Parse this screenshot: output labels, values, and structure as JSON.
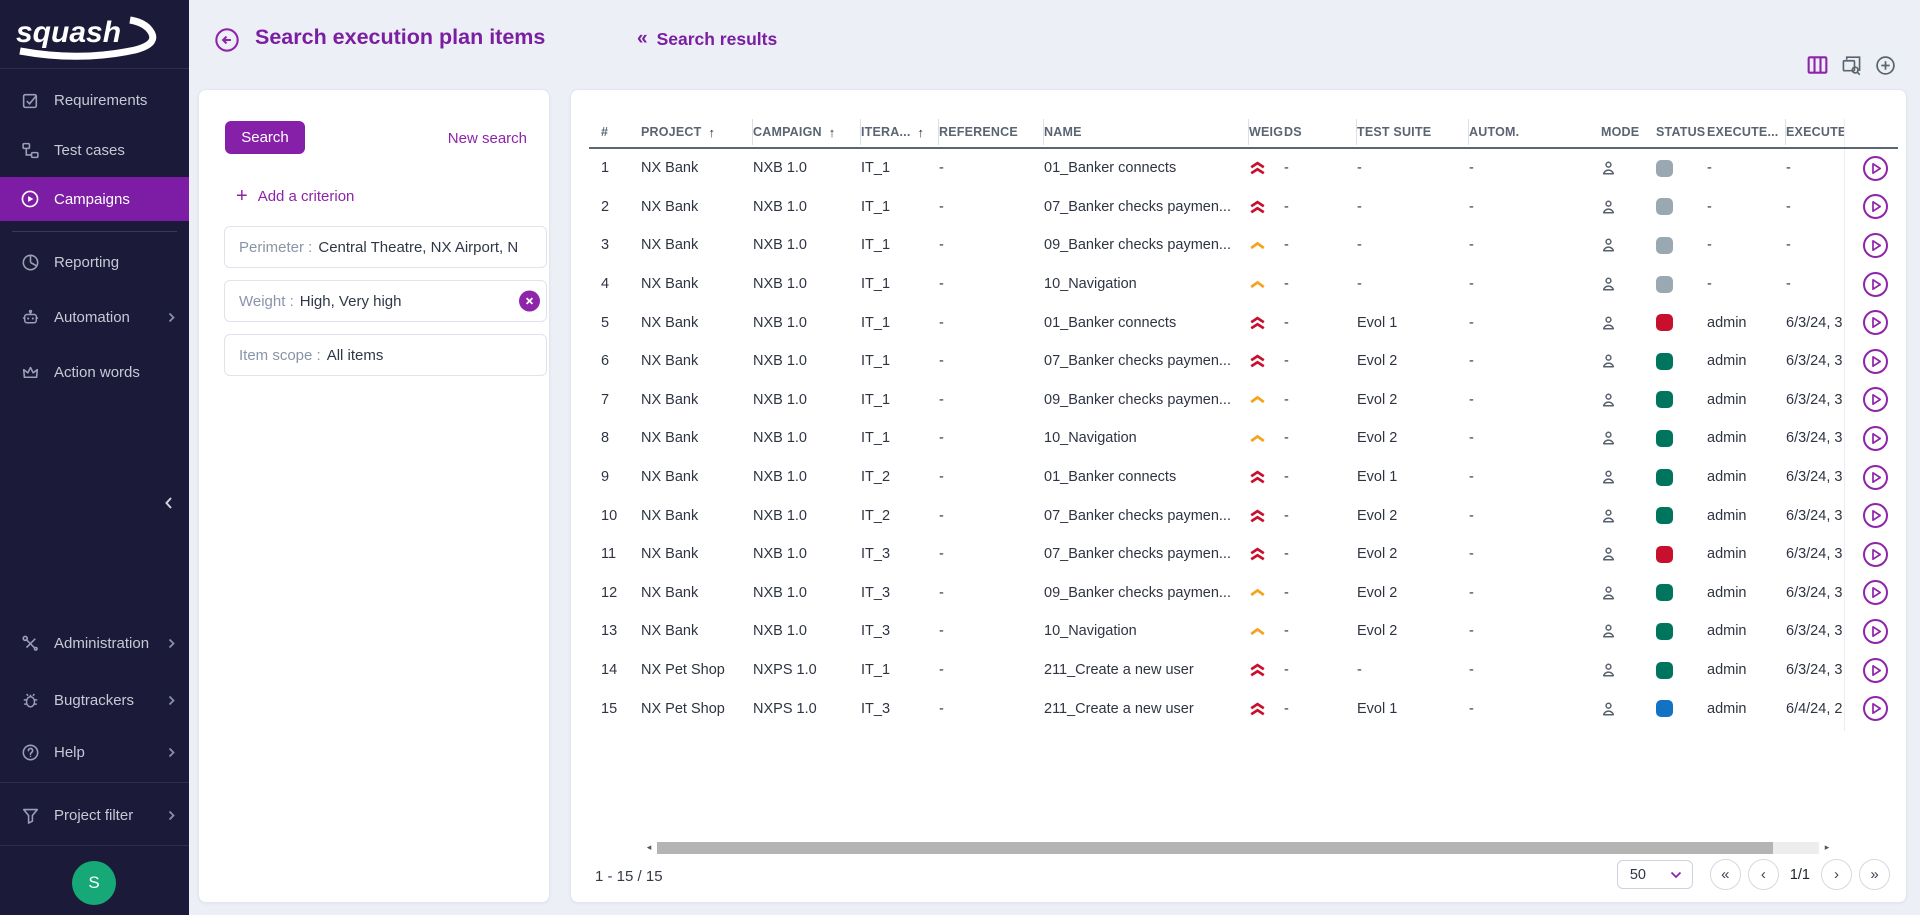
{
  "sidebar": {
    "logo": "squash",
    "main_items": [
      {
        "label": "Requirements",
        "icon": "requirements-icon",
        "active": false,
        "expandable": false
      },
      {
        "label": "Test cases",
        "icon": "test-cases-icon",
        "active": false,
        "expandable": false
      },
      {
        "label": "Campaigns",
        "icon": "campaigns-icon",
        "active": true,
        "expandable": false
      },
      {
        "label": "Reporting",
        "icon": "reporting-icon",
        "active": false,
        "expandable": false
      },
      {
        "label": "Automation",
        "icon": "automation-icon",
        "active": false,
        "expandable": true
      },
      {
        "label": "Action words",
        "icon": "action-words-icon",
        "active": false,
        "expandable": false
      }
    ],
    "bottom_items": [
      {
        "label": "Administration",
        "icon": "administration-icon",
        "expandable": true
      },
      {
        "label": "Bugtrackers",
        "icon": "bugtrackers-icon",
        "expandable": true
      },
      {
        "label": "Help",
        "icon": "help-icon",
        "expandable": true
      },
      {
        "label": "Project filter",
        "icon": "project-filter-icon",
        "expandable": true
      }
    ],
    "avatar_initial": "S"
  },
  "header": {
    "title": "Search execution plan items",
    "results_prefix": "«",
    "results_link": "Search results"
  },
  "search_panel": {
    "search_button": "Search",
    "new_search_link": "New search",
    "add_criterion_plus": "+",
    "add_criterion_label": "Add a criterion",
    "criteria": [
      {
        "label": "Perimeter",
        "value": "Central Theatre, NX Airport, NX B...",
        "removable": false
      },
      {
        "label": "Weight",
        "value": "High, Very high",
        "removable": true
      },
      {
        "label": "Item scope",
        "value": "All items",
        "removable": false
      }
    ]
  },
  "table": {
    "columns": [
      {
        "label": "#",
        "sort": false
      },
      {
        "label": "PROJECT",
        "sort": true
      },
      {
        "label": "CAMPAIGN",
        "sort": true
      },
      {
        "label": "ITERA...",
        "sort": true
      },
      {
        "label": "REFERENCE",
        "sort": false
      },
      {
        "label": "NAME",
        "sort": false
      },
      {
        "label": "WEIG...",
        "sort": false
      },
      {
        "label": "DS",
        "sort": false
      },
      {
        "label": "TEST SUITE",
        "sort": false
      },
      {
        "label": "AUTOM.",
        "sort": false
      },
      {
        "label": "MODE",
        "sort": false
      },
      {
        "label": "STATUS",
        "sort": false
      },
      {
        "label": "EXECUTE...",
        "sort": false
      },
      {
        "label": "EXECUTED (",
        "sort": false
      }
    ],
    "rows": [
      {
        "num": 1,
        "project": "NX Bank",
        "campaign": "NXB 1.0",
        "iteration": "IT_1",
        "reference": "-",
        "name": "01_Banker connects",
        "weight": "very-high",
        "datasets": "-",
        "test_suite": "-",
        "autom": "-",
        "mode": "manual",
        "status": "gray",
        "executed_by": "-",
        "executed_on": "-"
      },
      {
        "num": 2,
        "project": "NX Bank",
        "campaign": "NXB 1.0",
        "iteration": "IT_1",
        "reference": "-",
        "name": "07_Banker checks paymen...",
        "weight": "very-high",
        "datasets": "-",
        "test_suite": "-",
        "autom": "-",
        "mode": "manual",
        "status": "gray",
        "executed_by": "-",
        "executed_on": "-"
      },
      {
        "num": 3,
        "project": "NX Bank",
        "campaign": "NXB 1.0",
        "iteration": "IT_1",
        "reference": "-",
        "name": "09_Banker checks paymen...",
        "weight": "high",
        "datasets": "-",
        "test_suite": "-",
        "autom": "-",
        "mode": "manual",
        "status": "gray",
        "executed_by": "-",
        "executed_on": "-"
      },
      {
        "num": 4,
        "project": "NX Bank",
        "campaign": "NXB 1.0",
        "iteration": "IT_1",
        "reference": "-",
        "name": "10_Navigation",
        "weight": "high",
        "datasets": "-",
        "test_suite": "-",
        "autom": "-",
        "mode": "manual",
        "status": "gray",
        "executed_by": "-",
        "executed_on": "-"
      },
      {
        "num": 5,
        "project": "NX Bank",
        "campaign": "NXB 1.0",
        "iteration": "IT_1",
        "reference": "-",
        "name": "01_Banker connects",
        "weight": "very-high",
        "datasets": "-",
        "test_suite": "Evol 1",
        "autom": "-",
        "mode": "manual",
        "status": "red",
        "executed_by": "admin",
        "executed_on": "6/3/24, 3"
      },
      {
        "num": 6,
        "project": "NX Bank",
        "campaign": "NXB 1.0",
        "iteration": "IT_1",
        "reference": "-",
        "name": "07_Banker checks paymen...",
        "weight": "very-high",
        "datasets": "-",
        "test_suite": "Evol 2",
        "autom": "-",
        "mode": "manual",
        "status": "green",
        "executed_by": "admin",
        "executed_on": "6/3/24, 3"
      },
      {
        "num": 7,
        "project": "NX Bank",
        "campaign": "NXB 1.0",
        "iteration": "IT_1",
        "reference": "-",
        "name": "09_Banker checks paymen...",
        "weight": "high",
        "datasets": "-",
        "test_suite": "Evol 2",
        "autom": "-",
        "mode": "manual",
        "status": "green",
        "executed_by": "admin",
        "executed_on": "6/3/24, 3"
      },
      {
        "num": 8,
        "project": "NX Bank",
        "campaign": "NXB 1.0",
        "iteration": "IT_1",
        "reference": "-",
        "name": "10_Navigation",
        "weight": "high",
        "datasets": "-",
        "test_suite": "Evol 2",
        "autom": "-",
        "mode": "manual",
        "status": "green",
        "executed_by": "admin",
        "executed_on": "6/3/24, 3"
      },
      {
        "num": 9,
        "project": "NX Bank",
        "campaign": "NXB 1.0",
        "iteration": "IT_2",
        "reference": "-",
        "name": "01_Banker connects",
        "weight": "very-high",
        "datasets": "-",
        "test_suite": "Evol 1",
        "autom": "-",
        "mode": "manual",
        "status": "green",
        "executed_by": "admin",
        "executed_on": "6/3/24, 3"
      },
      {
        "num": 10,
        "project": "NX Bank",
        "campaign": "NXB 1.0",
        "iteration": "IT_2",
        "reference": "-",
        "name": "07_Banker checks paymen...",
        "weight": "very-high",
        "datasets": "-",
        "test_suite": "Evol 2",
        "autom": "-",
        "mode": "manual",
        "status": "green",
        "executed_by": "admin",
        "executed_on": "6/3/24, 3"
      },
      {
        "num": 11,
        "project": "NX Bank",
        "campaign": "NXB 1.0",
        "iteration": "IT_3",
        "reference": "-",
        "name": "07_Banker checks paymen...",
        "weight": "very-high",
        "datasets": "-",
        "test_suite": "Evol 2",
        "autom": "-",
        "mode": "manual",
        "status": "red",
        "executed_by": "admin",
        "executed_on": "6/3/24, 3"
      },
      {
        "num": 12,
        "project": "NX Bank",
        "campaign": "NXB 1.0",
        "iteration": "IT_3",
        "reference": "-",
        "name": "09_Banker checks paymen...",
        "weight": "high",
        "datasets": "-",
        "test_suite": "Evol 2",
        "autom": "-",
        "mode": "manual",
        "status": "green",
        "executed_by": "admin",
        "executed_on": "6/3/24, 3"
      },
      {
        "num": 13,
        "project": "NX Bank",
        "campaign": "NXB 1.0",
        "iteration": "IT_3",
        "reference": "-",
        "name": "10_Navigation",
        "weight": "high",
        "datasets": "-",
        "test_suite": "Evol 2",
        "autom": "-",
        "mode": "manual",
        "status": "green",
        "executed_by": "admin",
        "executed_on": "6/3/24, 3"
      },
      {
        "num": 14,
        "project": "NX Pet Shop",
        "campaign": "NXPS 1.0",
        "iteration": "IT_1",
        "reference": "-",
        "name": "211_Create a new user",
        "weight": "very-high",
        "datasets": "-",
        "test_suite": "-",
        "autom": "-",
        "mode": "manual",
        "status": "green",
        "executed_by": "admin",
        "executed_on": "6/3/24, 3"
      },
      {
        "num": 15,
        "project": "NX Pet Shop",
        "campaign": "NXPS 1.0",
        "iteration": "IT_3",
        "reference": "-",
        "name": "211_Create a new user",
        "weight": "very-high",
        "datasets": "-",
        "test_suite": "Evol 1",
        "autom": "-",
        "mode": "manual",
        "status": "blue",
        "executed_by": "admin",
        "executed_on": "6/4/24, 2"
      }
    ]
  },
  "pagination": {
    "range_label": "1 - 15 / 15",
    "page_size": "50",
    "page_indicator": "1/1"
  },
  "icons": {
    "sort_asc": "↑",
    "first_page": "«",
    "prev_page": "‹",
    "next_page": "›",
    "last_page": "»",
    "scroll_left": "◂",
    "scroll_right": "▸",
    "collapse_sidebar": "‹"
  },
  "colors": {
    "accent": "#8e24aa",
    "sidebar_active": "#7d1da6",
    "status_gray": "#9aa8b2",
    "status_red": "#c8102e",
    "status_green": "#00755e",
    "status_blue": "#1273c5",
    "weight_very_high": "#c8102e",
    "weight_high": "#f5a31a",
    "avatar_green": "#16a876"
  }
}
